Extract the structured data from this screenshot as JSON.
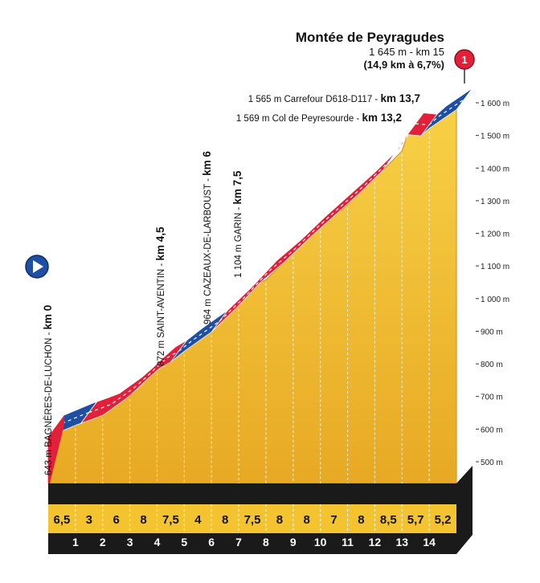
{
  "chart_data": {
    "type": "area",
    "title": "Montée de Peyragudes",
    "subtitle_line1": "1 645 m - km 15",
    "subtitle_line2": "(14,9 km à 6,7%)",
    "x_range": [
      0,
      15
    ],
    "y_range": [
      500,
      1650
    ],
    "y_ticks": [
      {
        "value": 500,
        "label": "500 m"
      },
      {
        "value": 600,
        "label": "600 m"
      },
      {
        "value": 700,
        "label": "700 m"
      },
      {
        "value": 800,
        "label": "800 m"
      },
      {
        "value": 900,
        "label": "900 m"
      },
      {
        "value": 1000,
        "label": "1 000 m"
      },
      {
        "value": 1100,
        "label": "1 100 m"
      },
      {
        "value": 1200,
        "label": "1 200 m"
      },
      {
        "value": 1300,
        "label": "1 300 m"
      },
      {
        "value": 1400,
        "label": "1 400 m"
      },
      {
        "value": 1500,
        "label": "1 500 m"
      },
      {
        "value": 1600,
        "label": "1 600 m"
      }
    ],
    "km_markers": [
      "1",
      "2",
      "3",
      "4",
      "5",
      "6",
      "7",
      "8",
      "9",
      "10",
      "11",
      "12",
      "13",
      "14"
    ],
    "gradients": [
      "6,5",
      "3",
      "6",
      "8",
      "7,5",
      "4",
      "8",
      "7,5",
      "8",
      "8",
      "7",
      "8",
      "8,5",
      "5,7",
      "5,2"
    ],
    "profile": [
      {
        "km": 0,
        "alt": 643
      },
      {
        "km": 1,
        "alt": 678
      },
      {
        "km": 2,
        "alt": 708
      },
      {
        "km": 3,
        "alt": 768
      },
      {
        "km": 4,
        "alt": 848
      },
      {
        "km": 4.5,
        "alt": 872
      },
      {
        "km": 5,
        "alt": 905
      },
      {
        "km": 6,
        "alt": 964
      },
      {
        "km": 7,
        "alt": 1044
      },
      {
        "km": 7.5,
        "alt": 1104
      },
      {
        "km": 8,
        "alt": 1124
      },
      {
        "km": 9,
        "alt": 1204
      },
      {
        "km": 10,
        "alt": 1284
      },
      {
        "km": 11,
        "alt": 1354
      },
      {
        "km": 12,
        "alt": 1434
      },
      {
        "km": 13,
        "alt": 1519
      },
      {
        "km": 13.2,
        "alt": 1569
      },
      {
        "km": 13.7,
        "alt": 1565
      },
      {
        "km": 14,
        "alt": 1588
      },
      {
        "km": 15,
        "alt": 1645
      }
    ],
    "climb_segments": [
      {
        "from": 0,
        "to": 1.2,
        "kind": "flat"
      },
      {
        "from": 1.2,
        "to": 4.5,
        "kind": "climb"
      },
      {
        "from": 4.5,
        "to": 6,
        "kind": "flat"
      },
      {
        "from": 6,
        "to": 13.2,
        "kind": "climb"
      },
      {
        "from": 13.2,
        "to": 13.7,
        "kind": "climb"
      },
      {
        "from": 13.7,
        "to": 15,
        "kind": "flat"
      }
    ],
    "landmarks": [
      {
        "id": "luchon",
        "alt_label": "643 m",
        "name": "BAGNÈRES-DE-LUCHON",
        "km_label": "km 0",
        "km": 0,
        "alt": 643
      },
      {
        "id": "saint-aventin",
        "alt_label": "872 m",
        "name": "SAINT-AVENTIN",
        "km_label": "km 4,5",
        "km": 4.5,
        "alt": 872
      },
      {
        "id": "cazeaux",
        "alt_label": "964 m",
        "name": "CAZEAUX-DE-LARBOUST",
        "km_label": "km 6",
        "km": 6,
        "alt": 964
      },
      {
        "id": "garin",
        "alt_label": "1 104 m",
        "name": "GARIN",
        "km_label": "km 7,5",
        "km": 7.5,
        "alt": 1104
      },
      {
        "id": "peyresourde",
        "alt_label": "1 569 m",
        "name": "Col de Peyresourde",
        "km_label": "km 13,2",
        "km": 13.2,
        "alt": 1569
      },
      {
        "id": "carrefour",
        "alt_label": "1 565 m",
        "name": "Carrefour D618-D117",
        "km_label": "km 13,7",
        "km": 13.7,
        "alt": 1565
      }
    ],
    "finish_marker": "1",
    "colors": {
      "climb": "#e2203a",
      "flat": "#1f4fa3",
      "fill": "#f2c12e",
      "base": "#1a1a1a",
      "finish": "#e2203a",
      "start": "#1f4fa3"
    }
  }
}
